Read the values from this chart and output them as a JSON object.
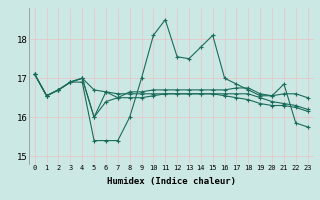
{
  "title": "",
  "xlabel": "Humidex (Indice chaleur)",
  "ylabel": "",
  "background_color": "#cce8e4",
  "grid_color": "#e8c8c8",
  "line_color": "#1a6b5a",
  "ylim": [
    14.8,
    18.8
  ],
  "xlim": [
    -0.5,
    23.5
  ],
  "yticks": [
    15,
    16,
    17,
    18
  ],
  "xticks": [
    0,
    1,
    2,
    3,
    4,
    5,
    6,
    7,
    8,
    9,
    10,
    11,
    12,
    13,
    14,
    15,
    16,
    17,
    18,
    19,
    20,
    21,
    22,
    23
  ],
  "series": [
    [
      17.1,
      16.55,
      16.7,
      16.9,
      16.9,
      15.4,
      15.4,
      15.4,
      16.0,
      17.0,
      18.1,
      18.5,
      17.55,
      17.5,
      17.8,
      18.1,
      17.0,
      16.85,
      16.7,
      16.55,
      16.55,
      16.85,
      15.85,
      15.75
    ],
    [
      17.1,
      16.55,
      16.7,
      16.9,
      17.0,
      16.0,
      16.65,
      16.5,
      16.65,
      16.65,
      16.7,
      16.7,
      16.7,
      16.7,
      16.7,
      16.7,
      16.7,
      16.75,
      16.75,
      16.6,
      16.55,
      16.6,
      16.6,
      16.5
    ],
    [
      17.1,
      16.55,
      16.7,
      16.9,
      17.0,
      16.7,
      16.65,
      16.6,
      16.6,
      16.6,
      16.6,
      16.6,
      16.6,
      16.6,
      16.6,
      16.6,
      16.6,
      16.6,
      16.6,
      16.5,
      16.4,
      16.35,
      16.3,
      16.2
    ],
    [
      17.1,
      16.55,
      16.7,
      16.9,
      17.0,
      16.0,
      16.4,
      16.5,
      16.5,
      16.5,
      16.55,
      16.6,
      16.6,
      16.6,
      16.6,
      16.6,
      16.55,
      16.5,
      16.45,
      16.35,
      16.3,
      16.3,
      16.25,
      16.15
    ]
  ]
}
